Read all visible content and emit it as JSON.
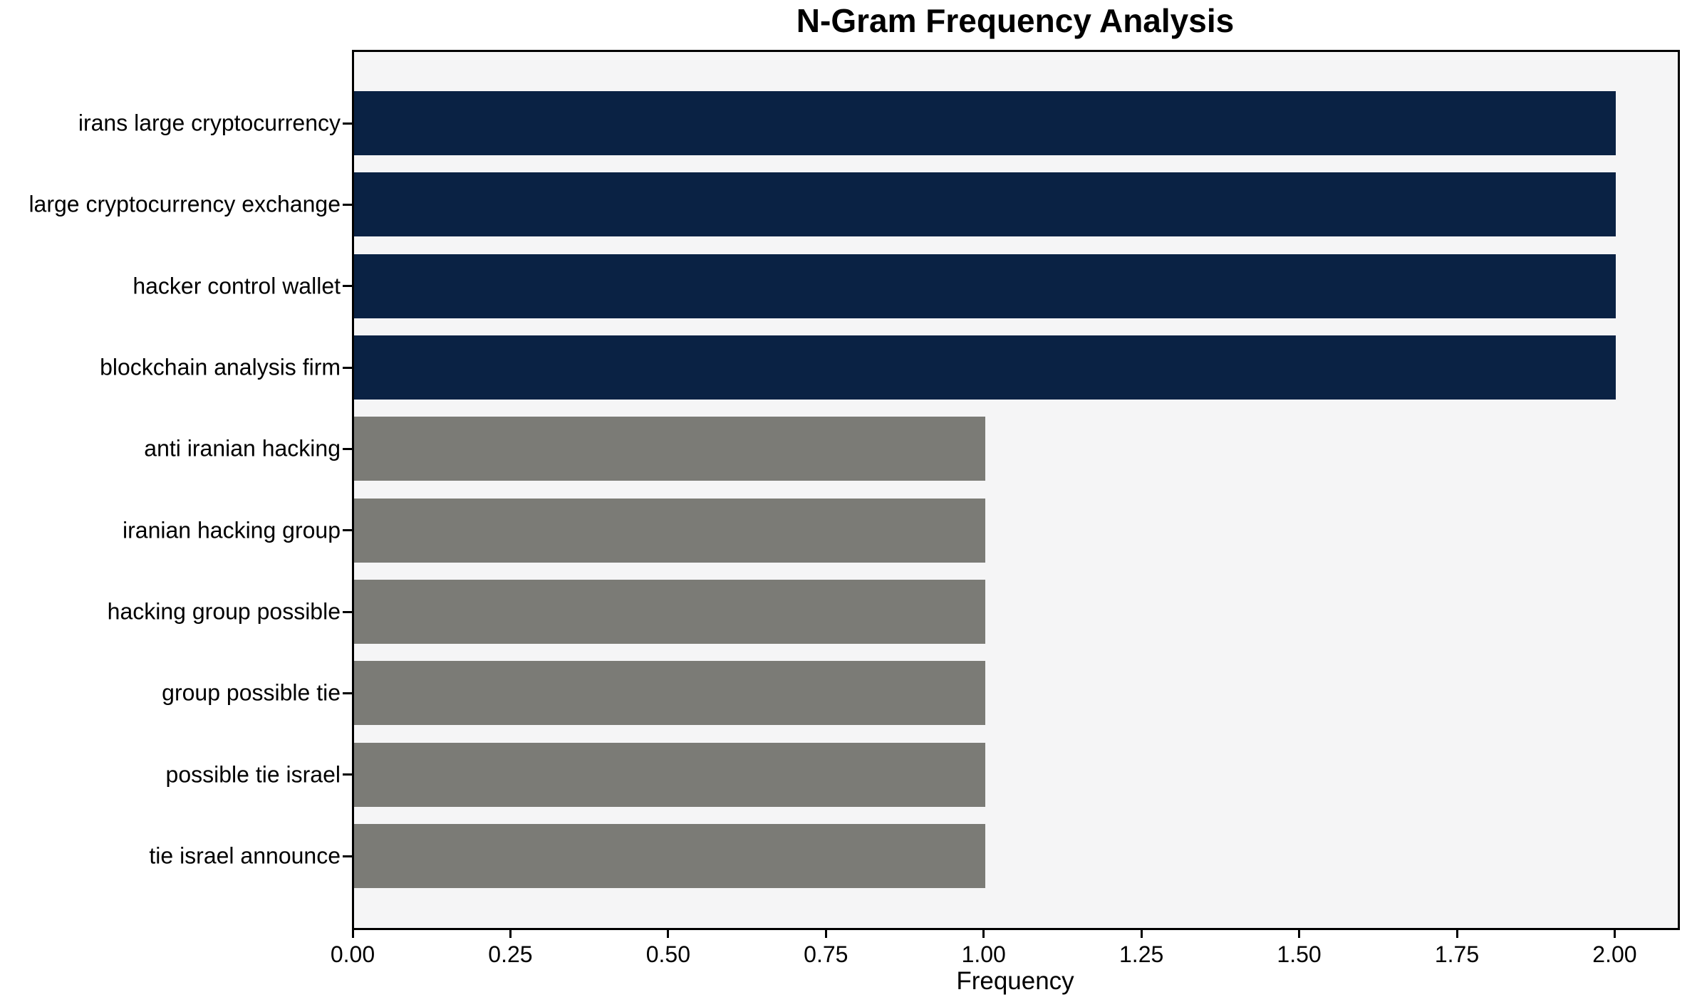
{
  "chart_data": {
    "type": "bar",
    "orientation": "horizontal",
    "title": "N-Gram Frequency Analysis",
    "xlabel": "Frequency",
    "ylabel": "",
    "categories": [
      "irans large cryptocurrency",
      "large cryptocurrency exchange",
      "hacker control wallet",
      "blockchain analysis firm",
      "anti iranian hacking",
      "iranian hacking group",
      "hacking group possible",
      "group possible tie",
      "possible tie israel",
      "tie israel announce"
    ],
    "values": [
      2,
      2,
      2,
      2,
      1,
      1,
      1,
      1,
      1,
      1
    ],
    "bar_colors": [
      "#0a2244",
      "#0a2244",
      "#0a2244",
      "#0a2244",
      "#7b7b76",
      "#7b7b76",
      "#7b7b76",
      "#7b7b76",
      "#7b7b76",
      "#7b7b76"
    ],
    "x_ticks": [
      0.0,
      0.25,
      0.5,
      0.75,
      1.0,
      1.25,
      1.5,
      1.75,
      2.0
    ],
    "x_tick_labels": [
      "0.00",
      "0.25",
      "0.50",
      "0.75",
      "1.00",
      "1.25",
      "1.50",
      "1.75",
      "2.00"
    ],
    "xlim": [
      0,
      2.1
    ],
    "grid": false,
    "legend": null,
    "colors": {
      "highlight_bar": "#0a2244",
      "default_bar": "#7b7b76",
      "plot_background": "#f5f5f6",
      "figure_background": "#ffffff",
      "spine": "#000000",
      "text": "#000000"
    }
  }
}
